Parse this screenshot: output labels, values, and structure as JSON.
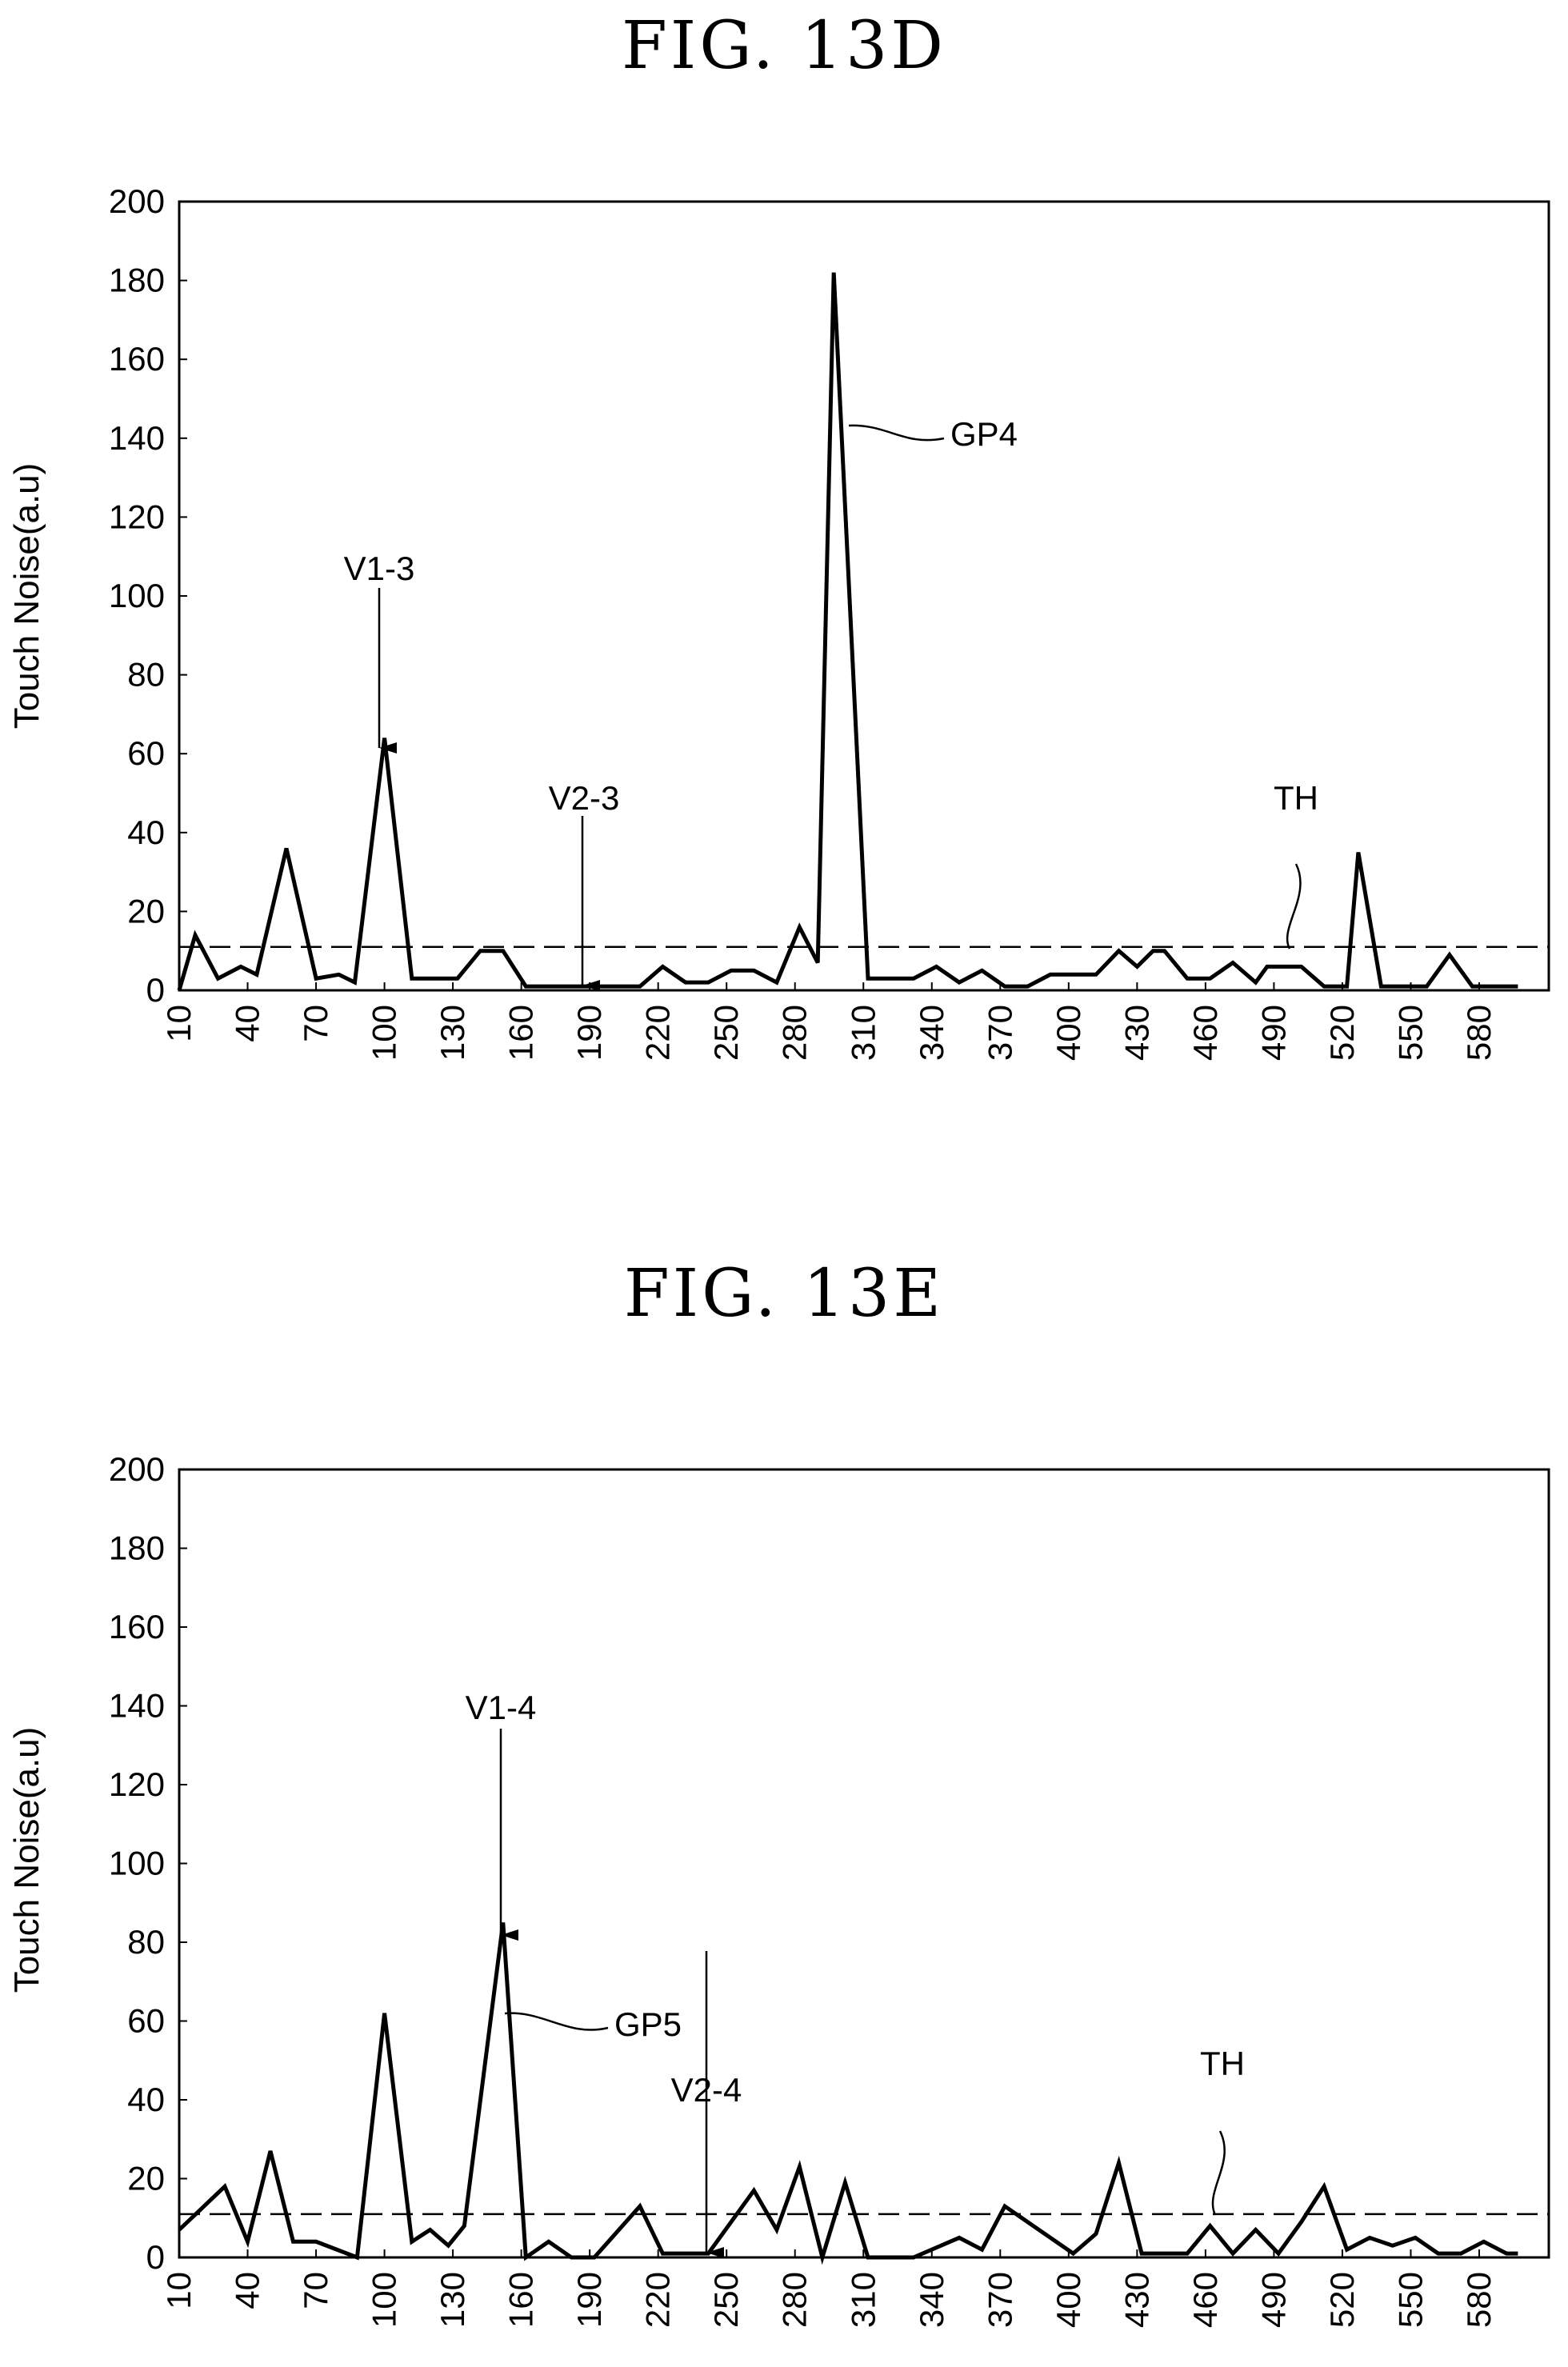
{
  "figures": [
    {
      "title": "FIG. 13D"
    },
    {
      "title": "FIG. 13E"
    }
  ],
  "chart_data": [
    {
      "type": "line",
      "title": "FIG. 13D",
      "ylabel": "Touch Noise(a.u)",
      "xlabel": "",
      "ylim": [
        0,
        200
      ],
      "yticks": [
        0,
        20,
        40,
        60,
        80,
        100,
        120,
        140,
        160,
        180,
        200
      ],
      "xticks": [
        10,
        40,
        70,
        100,
        130,
        160,
        190,
        220,
        250,
        280,
        310,
        340,
        370,
        400,
        430,
        460,
        490,
        520,
        550,
        580
      ],
      "xlim": [
        10,
        600
      ],
      "threshold": {
        "label": "TH",
        "value": 11
      },
      "x": [
        10,
        17,
        27,
        37,
        44,
        57,
        70,
        80,
        87,
        100,
        112,
        122,
        132,
        142,
        152,
        162,
        172,
        182,
        192,
        202,
        212,
        222,
        232,
        242,
        252,
        262,
        272,
        282,
        290,
        297,
        312,
        322,
        332,
        342,
        352,
        362,
        372,
        382,
        392,
        402,
        412,
        422,
        430,
        437,
        442,
        452,
        462,
        472,
        482,
        487,
        492,
        497,
        502,
        512,
        522,
        527,
        537,
        547,
        557,
        567,
        577,
        587,
        597
      ],
      "y": [
        0,
        14,
        3,
        6,
        4,
        36,
        3,
        4,
        2,
        64,
        3,
        3,
        3,
        10,
        10,
        1,
        1,
        1,
        1,
        1,
        1,
        6,
        2,
        2,
        5,
        5,
        2,
        16,
        7,
        182,
        3,
        3,
        3,
        6,
        2,
        5,
        1,
        1,
        4,
        4,
        4,
        10,
        6,
        10,
        10,
        3,
        3,
        7,
        2,
        6,
        6,
        6,
        6,
        1,
        1,
        35,
        1,
        1,
        1,
        9,
        1,
        1,
        1
      ],
      "annotations": [
        {
          "label": "V1-3",
          "x": 100,
          "y": 64,
          "kind": "arrow"
        },
        {
          "label": "V2-3",
          "x": 182,
          "y": 1,
          "kind": "arrow"
        },
        {
          "label": "GP4",
          "x": 300,
          "y": 143,
          "kind": "leader"
        },
        {
          "label": "TH",
          "x": 490,
          "y": 11,
          "kind": "leader"
        }
      ]
    },
    {
      "type": "line",
      "title": "FIG. 13E",
      "ylabel": "Touch Noise(a.u)",
      "xlabel": "",
      "ylim": [
        0,
        200
      ],
      "yticks": [
        0,
        20,
        40,
        60,
        80,
        100,
        120,
        140,
        160,
        180,
        200
      ],
      "xticks": [
        10,
        40,
        70,
        100,
        130,
        160,
        190,
        220,
        250,
        280,
        310,
        340,
        370,
        400,
        430,
        460,
        490,
        520,
        550,
        580
      ],
      "xlim": [
        10,
        600
      ],
      "threshold": {
        "label": "TH",
        "value": 11
      },
      "x": [
        10,
        30,
        40,
        50,
        60,
        70,
        88,
        100,
        112,
        120,
        128,
        135,
        152,
        162,
        172,
        182,
        192,
        212,
        222,
        232,
        242,
        262,
        272,
        282,
        292,
        302,
        312,
        322,
        332,
        352,
        362,
        372,
        402,
        412,
        422,
        432,
        442,
        452,
        462,
        472,
        482,
        492,
        502,
        512,
        522,
        532,
        542,
        552,
        562,
        572,
        582,
        592,
        597
      ],
      "y": [
        7,
        18,
        4,
        27,
        4,
        4,
        0,
        62,
        4,
        7,
        3,
        8,
        85,
        0,
        4,
        0,
        0,
        13,
        1,
        1,
        1,
        17,
        7,
        23,
        0,
        19,
        0,
        0,
        0,
        5,
        2,
        13,
        1,
        6,
        24,
        1,
        1,
        1,
        8,
        1,
        7,
        1,
        9,
        18,
        2,
        5,
        3,
        5,
        1,
        1,
        4,
        1,
        1
      ],
      "annotations": [
        {
          "label": "V1-4",
          "x": 152,
          "y": 85,
          "kind": "arrow"
        },
        {
          "label": "V2-4",
          "x": 242,
          "y": 1,
          "kind": "arrow"
        },
        {
          "label": "GP5",
          "x": 155,
          "y": 62,
          "kind": "leader"
        },
        {
          "label": "TH",
          "x": 460,
          "y": 11,
          "kind": "leader"
        }
      ]
    }
  ]
}
